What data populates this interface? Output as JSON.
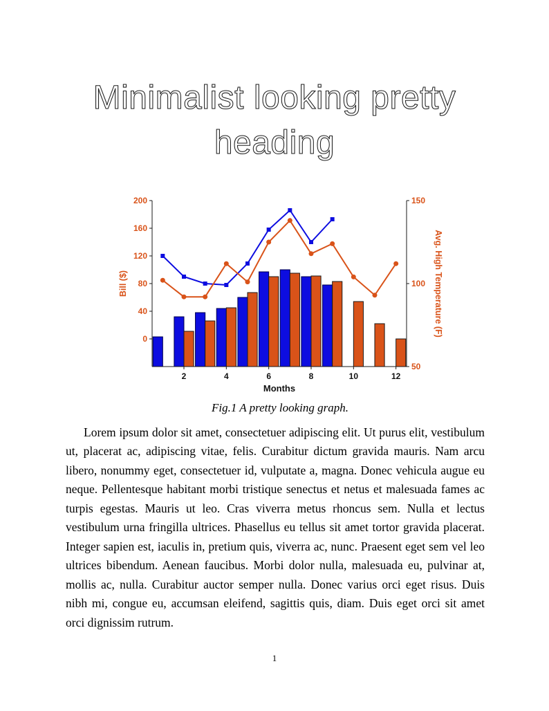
{
  "page": {
    "title": "Minimalist looking pretty heading",
    "figure_caption": "Fig.1 A pretty looking graph.",
    "body_paragraph": "Lorem ipsum dolor sit amet, consectetuer adipiscing elit. Ut purus elit, vestibulum ut, placerat ac, adipiscing vitae, felis. Curabitur dictum gravida mauris. Nam arcu libero, nonummy eget, consectetuer id, vulputate a, magna. Donec vehicula augue eu neque. Pellentesque habitant morbi tristique senectus et netus et malesuada fames ac turpis egestas. Mauris ut leo. Cras viverra metus rhoncus sem. Nulla et lectus vestibulum urna fringilla ultrices. Phasellus eu tellus sit amet tortor gravida placerat. Integer sapien est, iaculis in, pretium quis, viverra ac, nunc. Praesent eget sem vel leo ultrices bibendum. Aenean faucibus. Morbi dolor nulla, malesuada eu, pulvinar at, mollis ac, nulla. Curabitur auctor semper nulla. Donec varius orci eget risus. Duis nibh mi, congue eu, accumsan eleifend, sagittis quis, diam. Duis eget orci sit amet orci dignissim rutrum.",
    "page_number": "1"
  },
  "chart_data": {
    "type": "combo",
    "x": [
      1,
      2,
      3,
      4,
      5,
      6,
      7,
      8,
      9,
      10,
      11,
      12
    ],
    "x_ticks": [
      2,
      4,
      6,
      8,
      10,
      12
    ],
    "xlabel": "Months",
    "grid": false,
    "legend": null,
    "left_axis": {
      "label": "Bill ($)",
      "range": [
        -40,
        200
      ],
      "ticks": [
        0,
        40,
        80,
        120,
        160,
        200
      ],
      "color": "#d95319"
    },
    "right_axis": {
      "label": "Avg. High Temperature (F)",
      "range": [
        50,
        150
      ],
      "ticks": [
        50,
        100,
        150
      ],
      "color": "#d95319"
    },
    "axis_line_color": "#1a1a1a",
    "series": [
      {
        "name": "bill-bars-blue",
        "type": "bar",
        "axis": "left",
        "bar_offset": "left",
        "color": "#0d0de0",
        "edge": "#00004d",
        "values": [
          3,
          32,
          38,
          44,
          60,
          97,
          100,
          90,
          78,
          null,
          null,
          null
        ]
      },
      {
        "name": "temp-bars-orange",
        "type": "bar",
        "axis": "left",
        "bar_offset": "right",
        "color": "#d95319",
        "edge": "#1a1a1a",
        "values": [
          null,
          11,
          26,
          45,
          67,
          90,
          95,
          91,
          83,
          54,
          22,
          0
        ]
      },
      {
        "name": "bill-line-blue",
        "type": "line",
        "axis": "left",
        "marker": "square",
        "color": "#0d0de0",
        "values": [
          120,
          90,
          80,
          78,
          109,
          158,
          186,
          140,
          173,
          null,
          null,
          null
        ]
      },
      {
        "name": "temp-line-orange",
        "type": "line",
        "axis": "right",
        "marker": "circle",
        "color": "#d95319",
        "values": [
          102,
          92,
          92,
          112,
          101,
          125,
          138,
          118,
          124,
          104,
          93,
          112
        ]
      }
    ]
  }
}
